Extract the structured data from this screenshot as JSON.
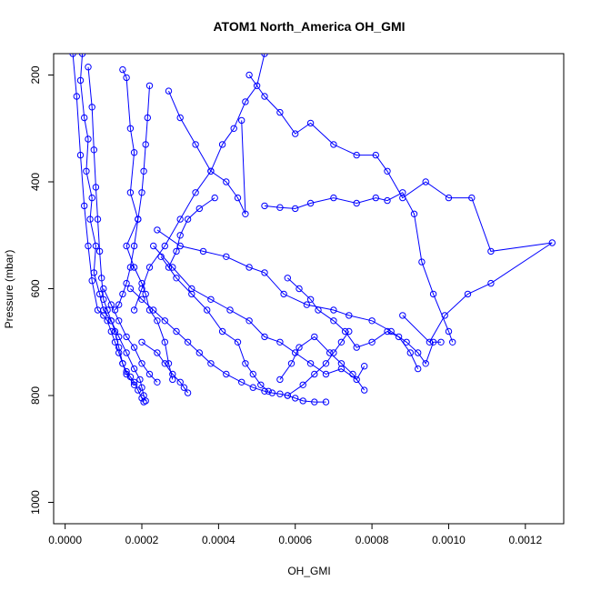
{
  "chart_data": {
    "type": "line",
    "title": "ATOM1 North_America OH_GMI",
    "xlabel": "OH_GMI",
    "ylabel": "Pressure (mbar)",
    "xlim": [
      -3e-05,
      0.0013
    ],
    "ylim": [
      1040,
      160
    ],
    "y_reversed": true,
    "grid": false,
    "color": "#0000ff",
    "x_ticks": [
      0.0,
      0.0002,
      0.0004,
      0.0006,
      0.0008,
      0.001,
      0.0012
    ],
    "x_tick_labels": [
      "0.0000",
      "0.0002",
      "0.0004",
      "0.0006",
      "0.0008",
      "0.0010",
      "0.0012"
    ],
    "y_ticks": [
      200,
      400,
      600,
      800,
      1000
    ],
    "y_tick_labels": [
      "200",
      "400",
      "600",
      "800",
      "1000"
    ],
    "series": [
      {
        "x": [
          2e-05,
          3e-05,
          4e-05,
          5e-05,
          6e-05,
          7e-05,
          8.5e-05,
          0.0001,
          0.00011,
          0.00012,
          0.00013,
          0.00014,
          0.00015,
          0.00016,
          0.00017,
          0.00018,
          0.00019,
          0.0002,
          0.000205
        ],
        "y": [
          160,
          240,
          350,
          445,
          520,
          585,
          640,
          650,
          660,
          680,
          700,
          720,
          740,
          755,
          765,
          775,
          790,
          805,
          812
        ]
      },
      {
        "x": [
          4.5e-05,
          4e-05,
          5e-05,
          6e-05,
          5.5e-05,
          7e-05,
          6.5e-05,
          8e-05,
          7.5e-05,
          9e-05,
          0.0001,
          0.00012,
          0.00014,
          0.00016,
          0.00018,
          0.000195,
          0.0002,
          0.000205,
          0.00021
        ],
        "y": [
          160,
          210,
          280,
          320,
          380,
          430,
          470,
          520,
          570,
          610,
          640,
          660,
          690,
          720,
          750,
          770,
          785,
          800,
          810
        ]
      },
      {
        "x": [
          6e-05,
          7e-05,
          7.5e-05,
          8e-05,
          8.5e-05,
          9e-05,
          9.5e-05,
          0.0001,
          0.00011,
          0.00012,
          0.00013,
          0.00014,
          0.00015,
          0.00016,
          0.00018
        ],
        "y": [
          185,
          260,
          340,
          410,
          470,
          530,
          580,
          620,
          640,
          660,
          680,
          710,
          740,
          760,
          780
        ]
      },
      {
        "x": [
          0.00015,
          0.00016,
          0.00017,
          0.00018,
          0.00017,
          0.00019,
          0.00016,
          0.00018,
          0.0002,
          0.00021,
          0.00022,
          0.00024,
          0.00026,
          0.00027,
          0.00028
        ],
        "y": [
          190,
          205,
          300,
          345,
          420,
          470,
          520,
          560,
          590,
          610,
          640,
          660,
          700,
          740,
          770
        ]
      },
      {
        "x": [
          0.00022,
          0.000215,
          0.00021,
          0.000205,
          0.0002,
          0.00019,
          0.00018,
          0.00017,
          0.00016,
          0.00015,
          0.00014,
          0.00013
        ],
        "y": [
          220,
          280,
          330,
          380,
          420,
          470,
          520,
          560,
          590,
          610,
          630,
          640
        ]
      },
      {
        "x": [
          0.00052,
          0.0005,
          0.00047,
          0.00044,
          0.00041,
          0.00038,
          0.00034,
          0.0003,
          0.00026,
          0.00022,
          0.0002,
          0.00018
        ],
        "y": [
          160,
          220,
          250,
          300,
          330,
          380,
          420,
          470,
          520,
          560,
          600,
          640
        ]
      },
      {
        "x": [
          0.00027,
          0.0003,
          0.00034,
          0.00038,
          0.00042,
          0.00045,
          0.00047,
          0.00046
        ],
        "y": [
          230,
          280,
          330,
          380,
          400,
          430,
          460,
          285
        ]
      },
      {
        "x": [
          0.00048,
          0.00052,
          0.00056,
          0.0006,
          0.00064,
          0.0007,
          0.00076,
          0.00081,
          0.00084,
          0.00088,
          0.00094,
          0.001,
          0.00106,
          0.00111,
          0.00127,
          0.00111,
          0.00105,
          0.00099,
          0.00095,
          0.00088
        ],
        "y": [
          200,
          240,
          270,
          310,
          290,
          330,
          350,
          350,
          380,
          430,
          400,
          430,
          430,
          530,
          514,
          590,
          610,
          650,
          700,
          650
        ]
      },
      {
        "x": [
          0.00052,
          0.00056,
          0.0006,
          0.00064,
          0.0007,
          0.00076,
          0.00081,
          0.00084,
          0.00088,
          0.00091,
          0.00093,
          0.00096,
          0.001,
          0.00101
        ],
        "y": [
          445,
          448,
          450,
          440,
          430,
          440,
          430,
          435,
          420,
          460,
          550,
          610,
          680,
          700
        ]
      },
      {
        "x": [
          0.00024,
          0.0003,
          0.00036,
          0.00042,
          0.00048,
          0.00052,
          0.00057,
          0.00063,
          0.0007,
          0.00074,
          0.0008,
          0.00085,
          0.00089,
          0.00092,
          0.00094,
          0.00096,
          0.00098
        ],
        "y": [
          490,
          520,
          530,
          540,
          560,
          570,
          610,
          630,
          640,
          650,
          660,
          680,
          700,
          720,
          740,
          700,
          700
        ]
      },
      {
        "x": [
          0.00023,
          0.00028,
          0.00033,
          0.00038,
          0.00043,
          0.00048,
          0.00052,
          0.00056,
          0.0006,
          0.00064,
          0.00068,
          0.00072,
          0.00076,
          0.00078
        ],
        "y": [
          520,
          560,
          600,
          620,
          640,
          660,
          690,
          700,
          720,
          740,
          760,
          750,
          770,
          745
        ]
      },
      {
        "x": [
          0.00025,
          0.00029,
          0.00033,
          0.00037,
          0.00041,
          0.00045,
          0.00047,
          0.00049,
          0.00051,
          0.00053
        ],
        "y": [
          540,
          580,
          610,
          640,
          680,
          700,
          740,
          760,
          780,
          792
        ]
      },
      {
        "x": [
          0.00058,
          0.00061,
          0.00064,
          0.00066,
          0.0007,
          0.00073,
          0.00076,
          0.0008,
          0.00084,
          0.00087,
          0.0009,
          0.00092
        ],
        "y": [
          580,
          600,
          620,
          640,
          660,
          680,
          710,
          700,
          680,
          690,
          720,
          750
        ]
      },
      {
        "x": [
          0.00017,
          0.0002,
          0.00023,
          0.00026,
          0.00029,
          0.00032,
          0.00035,
          0.00038,
          0.00042,
          0.00046,
          0.00049,
          0.00052,
          0.00054,
          0.00056,
          0.00058,
          0.0006,
          0.00062,
          0.00065,
          0.00068
        ],
        "y": [
          600,
          620,
          640,
          660,
          680,
          700,
          720,
          740,
          760,
          775,
          785,
          792,
          795,
          797,
          800,
          805,
          810,
          812,
          812
        ]
      },
      {
        "x": [
          0.00058,
          0.00062,
          0.00065,
          0.00068,
          0.0007,
          0.00072,
          0.00074
        ],
        "y": [
          800,
          780,
          760,
          740,
          720,
          700,
          680
        ]
      },
      {
        "x": [
          0.00056,
          0.00059,
          0.00061,
          0.00065,
          0.00069,
          0.00072,
          0.00075,
          0.00078
        ],
        "y": [
          770,
          740,
          710,
          690,
          720,
          740,
          760,
          790
        ]
      },
      {
        "x": [
          0.00039,
          0.00035,
          0.00032,
          0.0003,
          0.00029,
          0.00027
        ],
        "y": [
          430,
          450,
          470,
          500,
          530,
          560
        ]
      },
      {
        "x": [
          0.0002,
          0.00024,
          0.00026,
          0.00028,
          0.0003,
          0.00031,
          0.00032
        ],
        "y": [
          700,
          720,
          740,
          760,
          775,
          785,
          795
        ]
      },
      {
        "x": [
          0.0001,
          0.00012,
          0.00014,
          0.00016,
          0.00018,
          0.0002,
          0.00022,
          0.00024
        ],
        "y": [
          600,
          630,
          660,
          690,
          710,
          740,
          760,
          775
        ]
      }
    ]
  }
}
